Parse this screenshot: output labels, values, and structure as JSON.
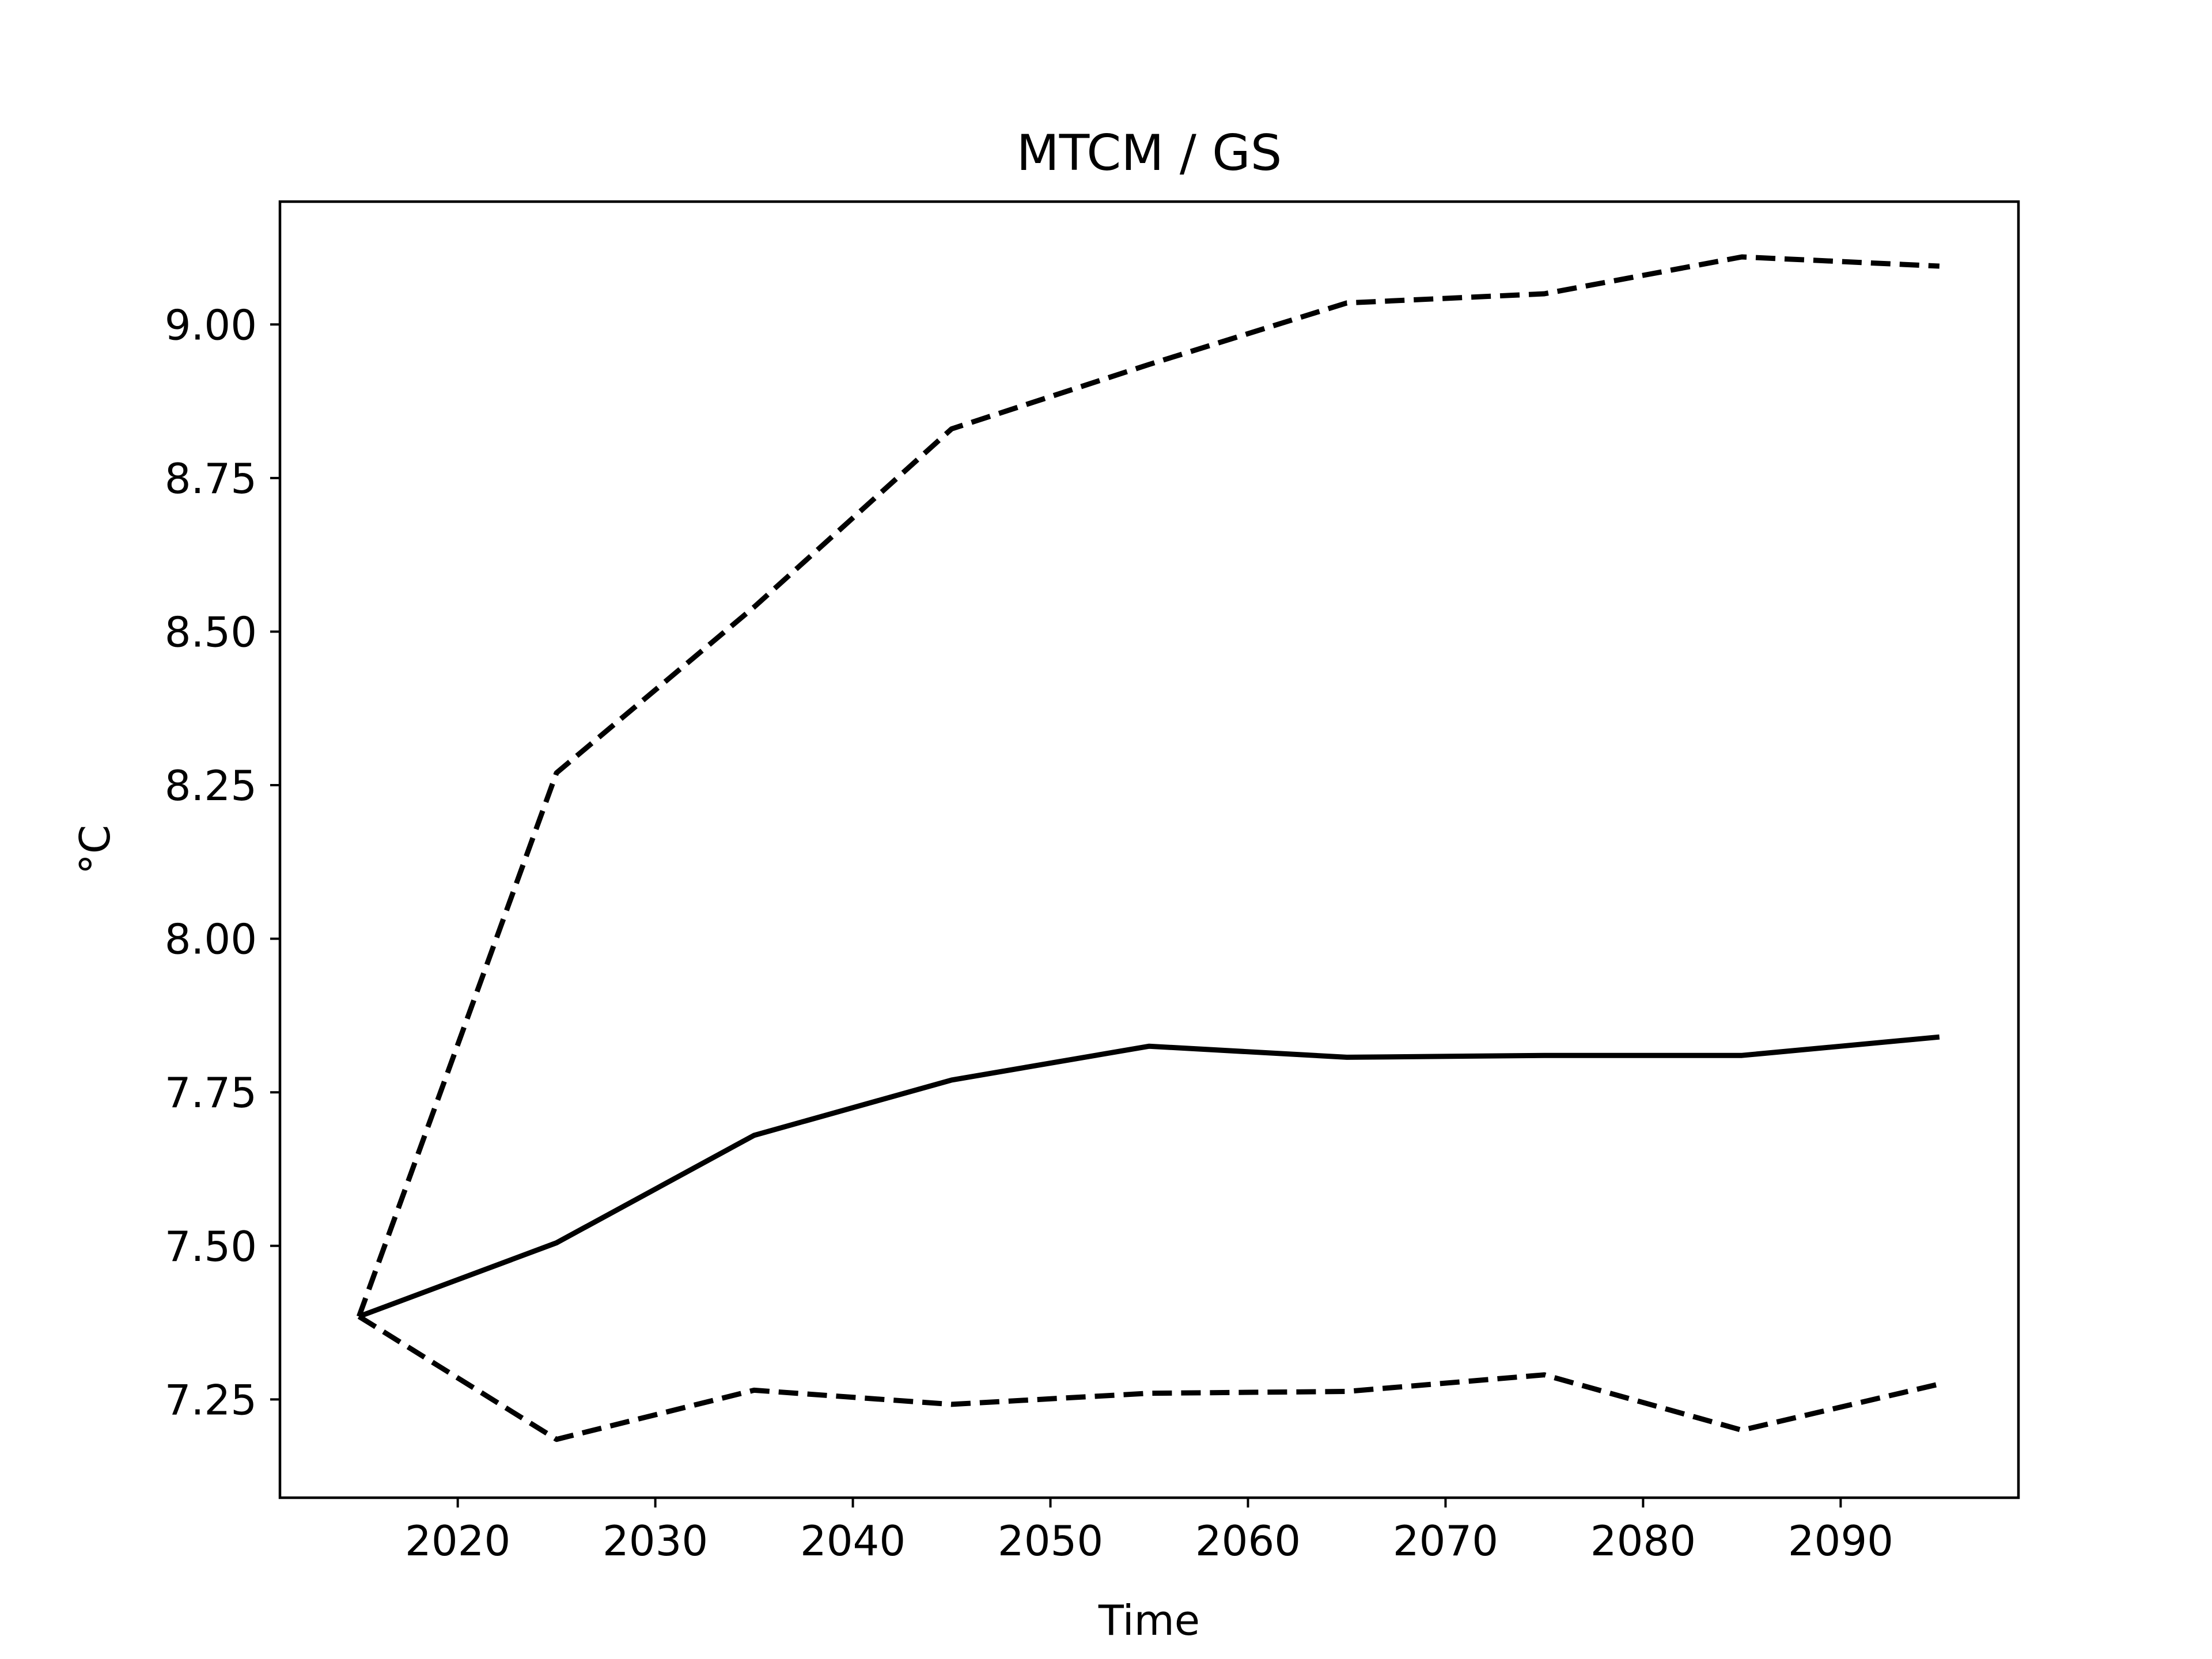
{
  "chart_data": {
    "type": "line",
    "title": "MTCM / GS",
    "xlabel": "Time",
    "ylabel": "°C",
    "xlim": [
      2011,
      2099
    ],
    "ylim": [
      7.09,
      9.2
    ],
    "x_ticks": [
      2020,
      2030,
      2040,
      2050,
      2060,
      2070,
      2080,
      2090
    ],
    "x_tick_labels": [
      "2020",
      "2030",
      "2040",
      "2050",
      "2060",
      "2070",
      "2080",
      "2090"
    ],
    "y_ticks": [
      7.25,
      7.5,
      7.75,
      8.0,
      8.25,
      8.5,
      8.75,
      9.0
    ],
    "y_tick_labels": [
      "7.25",
      "7.50",
      "7.75",
      "8.00",
      "8.25",
      "8.50",
      "8.75",
      "9.00"
    ],
    "grid": false,
    "x": [
      2015,
      2025,
      2035,
      2045,
      2055,
      2065,
      2075,
      2085,
      2095
    ],
    "series": [
      {
        "style": "solid",
        "color": "#000000",
        "values": [
          7.385,
          7.505,
          7.68,
          7.77,
          7.825,
          7.807,
          7.81,
          7.81,
          7.84
        ]
      },
      {
        "style": "dashed",
        "color": "#000000",
        "values": [
          7.385,
          8.27,
          8.54,
          8.83,
          8.935,
          9.035,
          9.05,
          9.11,
          9.095
        ]
      },
      {
        "style": "dashed",
        "color": "#000000",
        "values": [
          7.385,
          7.185,
          7.265,
          7.242,
          7.26,
          7.263,
          7.29,
          7.2,
          7.275
        ]
      }
    ]
  }
}
